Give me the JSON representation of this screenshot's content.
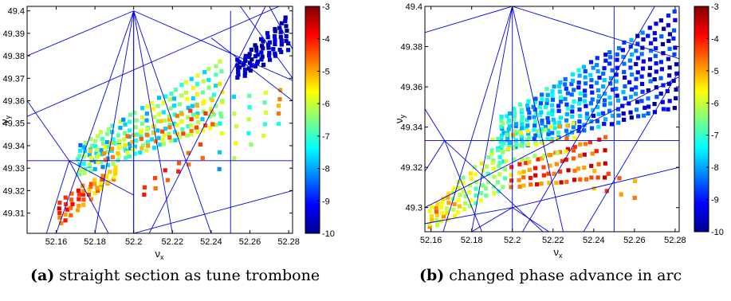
{
  "captions": [
    {
      "tag": "(a)",
      "text": "straight section as tune trombone"
    },
    {
      "tag": "(b)",
      "text": "changed phase advance in arc"
    }
  ],
  "colors": {
    "resonance_line": "#0000ee",
    "colormap": [
      "#00008f",
      "#0000ff",
      "#0080ff",
      "#00ffff",
      "#80ff80",
      "#ffff00",
      "#ff8000",
      "#ff0000",
      "#800000"
    ]
  },
  "chart_data": [
    {
      "type": "scatter",
      "title": "",
      "xlabel": "ν",
      "xlabel_sub": "x",
      "ylabel": "ν",
      "ylabel_sub": "y",
      "xlim": [
        52.145,
        52.282
      ],
      "ylim": [
        49.301,
        49.402
      ],
      "x_ticks": [
        52.16,
        52.18,
        52.2,
        52.22,
        52.24,
        52.26,
        52.28
      ],
      "x_tick_labels": [
        "52.16",
        "52.18",
        "52.2",
        "52.22",
        "52.24",
        "52.26",
        "52.28"
      ],
      "y_ticks": [
        49.31,
        49.32,
        49.33,
        49.34,
        49.35,
        49.36,
        49.37,
        49.38,
        49.39,
        49.4
      ],
      "y_tick_labels": [
        "49.31",
        "49.32",
        "49.33",
        "49.34",
        "49.35",
        "49.36",
        "49.37",
        "49.38",
        "49.39",
        "49.4"
      ],
      "colorbar": {
        "range": [
          -10,
          -3
        ],
        "ticks": [
          -3,
          -4,
          -5,
          -6,
          -7,
          -8,
          -9,
          -10
        ],
        "tick_labels": [
          "-3",
          "-4",
          "-5",
          "-6",
          "-7",
          "-8",
          "-9",
          "-10"
        ]
      },
      "resonance_lines": [
        {
          "x1": 52.2,
          "y1": 49.3,
          "x2": 52.2,
          "y2": 49.4
        },
        {
          "x1": 52.25,
          "y1": 49.3,
          "x2": 52.25,
          "y2": 49.4
        },
        {
          "x1": 52.145,
          "y1": 49.3333,
          "x2": 52.282,
          "y2": 49.3333
        },
        {
          "x1": 52.145,
          "y1": 49.38,
          "x2": 52.2,
          "y2": 49.4
        },
        {
          "x1": 52.2,
          "y1": 49.4,
          "x2": 52.282,
          "y2": 49.369
        },
        {
          "x1": 52.2,
          "y1": 49.4,
          "x2": 52.16,
          "y2": 49.301
        },
        {
          "x1": 52.2,
          "y1": 49.4,
          "x2": 52.18,
          "y2": 49.301
        },
        {
          "x1": 52.2,
          "y1": 49.4,
          "x2": 52.2,
          "y2": 49.301
        },
        {
          "x1": 52.2,
          "y1": 49.4,
          "x2": 52.22,
          "y2": 49.301
        },
        {
          "x1": 52.2,
          "y1": 49.4,
          "x2": 52.24,
          "y2": 49.301
        },
        {
          "x1": 52.145,
          "y1": 49.36,
          "x2": 52.1667,
          "y2": 49.3333
        },
        {
          "x1": 52.1667,
          "y1": 49.3333,
          "x2": 52.187,
          "y2": 49.301
        },
        {
          "x1": 52.1667,
          "y1": 49.3333,
          "x2": 52.155,
          "y2": 49.301
        },
        {
          "x1": 52.1667,
          "y1": 49.3333,
          "x2": 52.2,
          "y2": 49.318
        },
        {
          "x1": 52.145,
          "y1": 49.353,
          "x2": 52.275,
          "y2": 49.402
        },
        {
          "x1": 52.208,
          "y1": 49.301,
          "x2": 52.268,
          "y2": 49.402
        },
        {
          "x1": 52.27,
          "y1": 49.402,
          "x2": 52.282,
          "y2": 49.383
        },
        {
          "x1": 52.24,
          "y1": 49.388,
          "x2": 52.282,
          "y2": 49.36
        },
        {
          "x1": 52.255,
          "y1": 49.402,
          "x2": 52.282,
          "y2": 49.37
        },
        {
          "x1": 52.2,
          "y1": 49.301,
          "x2": 52.282,
          "y2": 49.32
        }
      ],
      "regions": [
        {
          "x0": 52.162,
          "x1": 52.19,
          "ylo0": 49.305,
          "ylo1": 49.325,
          "yhi0": 49.315,
          "yhi1": 49.33,
          "nx": 10,
          "ny": 5,
          "c0": -4.2,
          "c1": -5.2,
          "jitter": 0.7
        },
        {
          "x0": 52.172,
          "x1": 52.245,
          "ylo0": 49.327,
          "ylo1": 49.35,
          "yhi0": 49.34,
          "yhi1": 49.377,
          "nx": 26,
          "ny": 7,
          "c0": -7.2,
          "c1": -6.5,
          "jitter": 1.2
        },
        {
          "x0": 52.178,
          "x1": 52.24,
          "ylo0": 49.332,
          "ylo1": 49.35,
          "yhi0": 49.337,
          "yhi1": 49.36,
          "nx": 18,
          "ny": 3,
          "c0": -5.6,
          "c1": -4.8,
          "jitter": 0.8
        },
        {
          "x0": 52.205,
          "x1": 52.235,
          "ylo0": 49.318,
          "ylo1": 49.335,
          "yhi0": 49.322,
          "yhi1": 49.34,
          "nx": 6,
          "ny": 2,
          "c0": -4.3,
          "c1": -4.4,
          "jitter": 0.4
        },
        {
          "x0": 52.254,
          "x1": 52.279,
          "ylo0": 49.37,
          "ylo1": 49.383,
          "yhi0": 49.378,
          "yhi1": 49.397,
          "nx": 9,
          "ny": 8,
          "c0": -9.6,
          "c1": -9.7,
          "jitter": 0.4
        },
        {
          "x0": 52.245,
          "x1": 52.275,
          "ylo0": 49.33,
          "ylo1": 49.35,
          "yhi0": 49.36,
          "yhi1": 49.365,
          "nx": 5,
          "ny": 5,
          "c0": -7.0,
          "c1": -6.0,
          "jitter": 1.4
        }
      ]
    },
    {
      "type": "scatter",
      "title": "",
      "xlabel": "ν",
      "xlabel_sub": "x",
      "ylabel": "ν",
      "ylabel_sub": "y",
      "xlim": [
        52.157,
        52.282
      ],
      "ylim": [
        49.288,
        49.4
      ],
      "x_ticks": [
        52.16,
        52.18,
        52.2,
        52.22,
        52.24,
        52.26,
        52.28
      ],
      "x_tick_labels": [
        "52.16",
        "52.18",
        "52.2",
        "52.22",
        "52.24",
        "52.26",
        "52.28"
      ],
      "y_ticks": [
        49.3,
        49.32,
        49.34,
        49.36,
        49.38,
        49.4
      ],
      "y_tick_labels": [
        "49.3",
        "49.32",
        "49.34",
        "49.36",
        "49.38",
        "49.4"
      ],
      "colorbar": {
        "range": [
          -10,
          -3
        ],
        "ticks": [
          -3,
          -4,
          -5,
          -6,
          -7,
          -8,
          -9,
          -10
        ],
        "tick_labels": [
          "-3",
          "-4",
          "-5",
          "-6",
          "-7",
          "-8",
          "-9",
          "-10"
        ]
      },
      "resonance_lines": [
        {
          "x1": 52.2,
          "y1": 49.288,
          "x2": 52.2,
          "y2": 49.4
        },
        {
          "x1": 52.25,
          "y1": 49.288,
          "x2": 52.25,
          "y2": 49.4
        },
        {
          "x1": 52.157,
          "y1": 49.3333,
          "x2": 52.282,
          "y2": 49.3333
        },
        {
          "x1": 52.157,
          "y1": 49.4,
          "x2": 52.282,
          "y2": 49.4
        },
        {
          "x1": 52.157,
          "y1": 49.387,
          "x2": 52.2,
          "y2": 49.4
        },
        {
          "x1": 52.2,
          "y1": 49.4,
          "x2": 52.282,
          "y2": 49.374
        },
        {
          "x1": 52.2,
          "y1": 49.4,
          "x2": 52.166,
          "y2": 49.288
        },
        {
          "x1": 52.2,
          "y1": 49.4,
          "x2": 52.18,
          "y2": 49.288
        },
        {
          "x1": 52.2,
          "y1": 49.4,
          "x2": 52.225,
          "y2": 49.288
        },
        {
          "x1": 52.157,
          "y1": 49.349,
          "x2": 52.1667,
          "y2": 49.3333
        },
        {
          "x1": 52.1667,
          "y1": 49.3333,
          "x2": 52.185,
          "y2": 49.288
        },
        {
          "x1": 52.157,
          "y1": 49.318,
          "x2": 52.1667,
          "y2": 49.3333
        },
        {
          "x1": 52.1667,
          "y1": 49.3333,
          "x2": 52.215,
          "y2": 49.288
        },
        {
          "x1": 52.2,
          "y1": 49.3,
          "x2": 52.282,
          "y2": 49.32
        },
        {
          "x1": 52.2,
          "y1": 49.3,
          "x2": 52.157,
          "y2": 49.292
        },
        {
          "x1": 52.2,
          "y1": 49.3,
          "x2": 52.18,
          "y2": 49.288
        },
        {
          "x1": 52.2,
          "y1": 49.3,
          "x2": 52.218,
          "y2": 49.288
        },
        {
          "x1": 52.157,
          "y1": 49.3,
          "x2": 52.282,
          "y2": 49.365
        },
        {
          "x1": 52.205,
          "y1": 49.288,
          "x2": 52.27,
          "y2": 49.4
        },
        {
          "x1": 52.235,
          "y1": 49.288,
          "x2": 52.282,
          "y2": 49.368
        }
      ],
      "regions": [
        {
          "x0": 52.16,
          "x1": 52.196,
          "ylo0": 49.29,
          "ylo1": 49.31,
          "yhi0": 49.3,
          "yhi1": 49.332,
          "nx": 14,
          "ny": 6,
          "c0": -5.2,
          "c1": -6.8,
          "jitter": 0.9
        },
        {
          "x0": 52.195,
          "x1": 52.28,
          "ylo0": 49.328,
          "ylo1": 49.35,
          "yhi0": 49.345,
          "yhi1": 49.397,
          "nx": 28,
          "ny": 12,
          "c0": -7.2,
          "c1": -9.5,
          "jitter": 1.0
        },
        {
          "x0": 52.2,
          "x1": 52.245,
          "ylo0": 49.31,
          "ylo1": 49.315,
          "yhi0": 49.32,
          "yhi1": 49.335,
          "nx": 16,
          "ny": 4,
          "c0": -4.6,
          "c1": -4.0,
          "jitter": 0.9
        },
        {
          "x0": 52.19,
          "x1": 52.23,
          "ylo0": 49.322,
          "ylo1": 49.328,
          "yhi0": 49.334,
          "yhi1": 49.342,
          "nx": 12,
          "ny": 3,
          "c0": -6.0,
          "c1": -5.4,
          "jitter": 1.0
        },
        {
          "x0": 52.24,
          "x1": 52.26,
          "ylo0": 49.31,
          "ylo1": 49.305,
          "yhi0": 49.318,
          "yhi1": 49.313,
          "nx": 4,
          "ny": 2,
          "c0": -4.6,
          "c1": -4.6,
          "jitter": 0.6
        }
      ]
    }
  ]
}
